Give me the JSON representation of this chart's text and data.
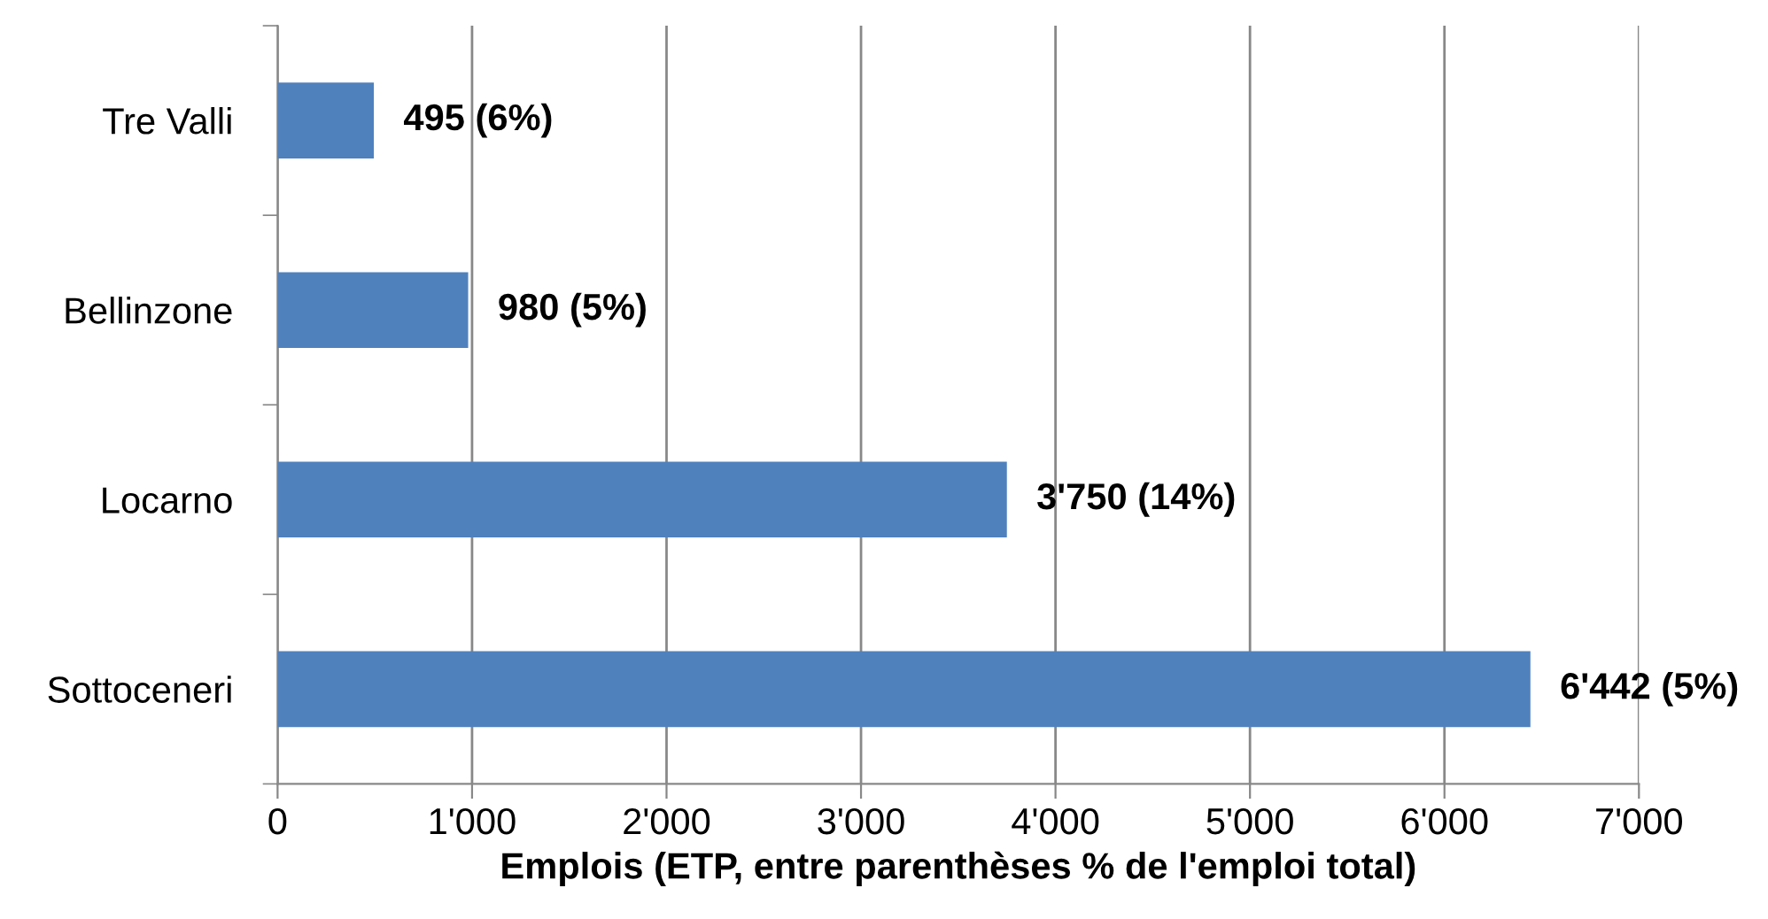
{
  "chart_data": {
    "type": "bar",
    "orientation": "horizontal",
    "xlabel": "Emplois (ETP, entre parenthèses % de l'emploi total)",
    "categories": [
      "Tre Valli",
      "Bellinzone",
      "Locarno",
      "Sottoceneri"
    ],
    "values": [
      495,
      980,
      3750,
      6442
    ],
    "color": "#4f81bd",
    "value_labels": [
      "495 (6%)",
      "980 (5%)",
      "3'750 (14%)",
      "6'442 (5%)"
    ],
    "xlim": [
      0,
      7000
    ],
    "xticks": [
      0,
      {
        "value": 1000,
        "label": "1'000"
      },
      {
        "value": 2000,
        "label": "2'000"
      },
      {
        "value": 3000,
        "label": "3'000"
      },
      {
        "value": 4000,
        "label": "4'000"
      },
      {
        "value": 5000,
        "label": "5'000"
      },
      {
        "value": 6000,
        "label": "6'000"
      },
      {
        "value": 7000,
        "label": "7'000"
      }
    ],
    "grid": "x",
    "legend": false
  }
}
